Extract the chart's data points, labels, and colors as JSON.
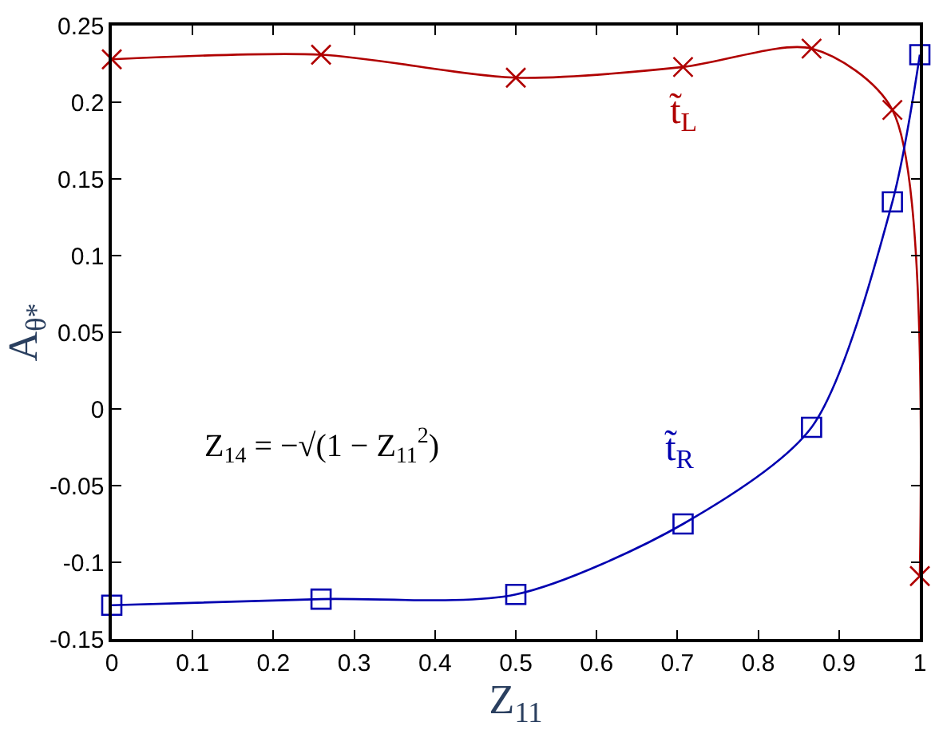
{
  "chart_data": {
    "type": "line",
    "xlabel": "Z$_{11}$",
    "ylabel": "A$_{θ*}$",
    "x": [
      0,
      0.259,
      0.5,
      0.707,
      0.866,
      0.966,
      1
    ],
    "series": [
      {
        "name": "t̃$_{L}$",
        "color": "#b00000",
        "marker": "cross",
        "values": [
          0.228,
          0.231,
          0.216,
          0.223,
          0.235,
          0.195,
          -0.109
        ]
      },
      {
        "name": "t̃$_{R}$",
        "color": "#0000b0",
        "marker": "square",
        "values": [
          -0.128,
          -0.124,
          -0.121,
          -0.075,
          -0.012,
          0.135,
          0.231
        ]
      }
    ],
    "annotations": [
      "Z$_{14}$ = −√(1 − Z$_{11}$$^{2}$)"
    ],
    "xlim": [
      0,
      1
    ],
    "xticks": [
      0,
      0.1,
      0.2,
      0.3,
      0.4,
      0.5,
      0.6,
      0.7,
      0.8,
      0.9,
      1
    ],
    "ylim": [
      -0.15,
      0.25
    ],
    "yticks": [
      -0.15,
      -0.1,
      -0.05,
      0,
      0.05,
      0.1,
      0.15,
      0.2,
      0.25
    ],
    "legend": false
  }
}
